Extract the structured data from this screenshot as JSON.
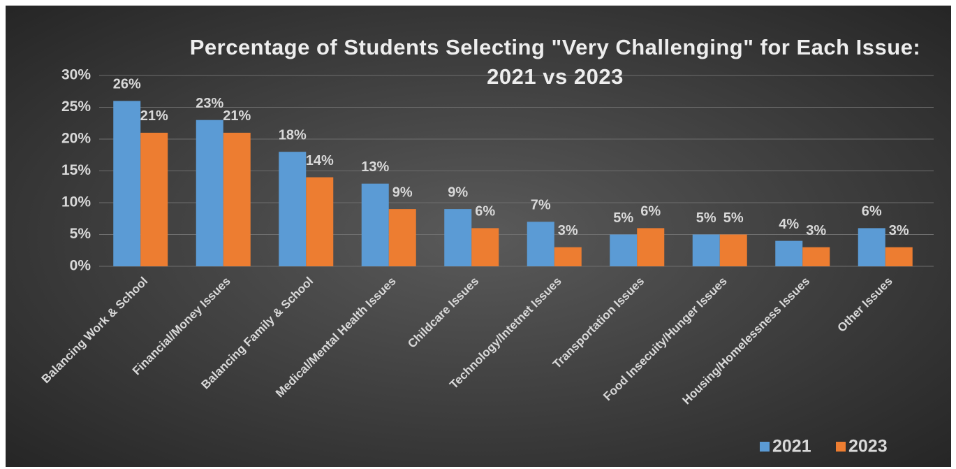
{
  "chart_data": {
    "type": "bar",
    "title": "Percentage of Students Selecting \"Very Challenging\" for Each Issue: 2021 vs 2023",
    "categories": [
      "Balancing Work & School",
      "Financial/Money Issues",
      "Balancing Family & School",
      "Medical/Mental Health Issues",
      "Childcare Issues",
      "Technology/Intetnet Issues",
      "Transportation Issues",
      "Food Insecuity/Hunger Issues",
      "Housing/Homelessness Issues",
      "Other Issues"
    ],
    "series": [
      {
        "name": "2021",
        "color": "#5b9bd5",
        "values": [
          26,
          23,
          18,
          13,
          9,
          7,
          5,
          5,
          4,
          6
        ],
        "value_labels": [
          "26%",
          "23%",
          "18%",
          "13%",
          "9%",
          "7%",
          "5%",
          "5%",
          "4%",
          "6%"
        ]
      },
      {
        "name": "2023",
        "color": "#ed7d31",
        "values": [
          21,
          21,
          14,
          9,
          6,
          3,
          6,
          5,
          3,
          3
        ],
        "value_labels": [
          "21%",
          "21%",
          "14%",
          "9%",
          "6%",
          "3%",
          "6%",
          "5%",
          "3%",
          "3%"
        ]
      }
    ],
    "ylim": [
      0,
      30
    ],
    "yticks": [
      {
        "value": 0,
        "label": "0%"
      },
      {
        "value": 5,
        "label": "5%"
      },
      {
        "value": 10,
        "label": "10%"
      },
      {
        "value": 15,
        "label": "15%"
      },
      {
        "value": 20,
        "label": "20%"
      },
      {
        "value": 25,
        "label": "25%"
      },
      {
        "value": 30,
        "label": "30%"
      }
    ],
    "grid": true,
    "legend": "bottom-right"
  }
}
